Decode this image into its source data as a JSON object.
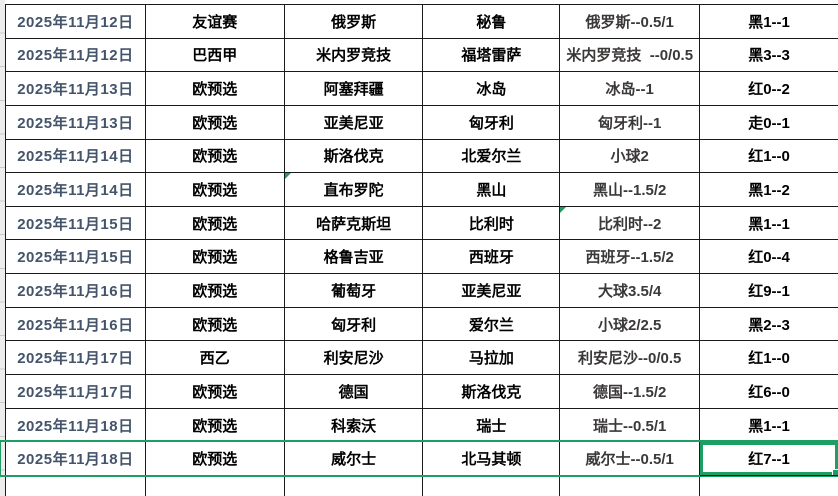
{
  "app": {
    "kind": "spreadsheet-grid",
    "description": "football match handicap record table"
  },
  "colors": {
    "grid_line": "#1a1a1a",
    "date_text": "#44546a",
    "handicap_text": "#3b3838",
    "default_text": "#000000",
    "selection_green": "#1f9e64",
    "left_strip_bg": "#ededed"
  },
  "table": {
    "column_order": [
      "date",
      "league",
      "home",
      "away",
      "handicap",
      "result"
    ],
    "rows": [
      {
        "date": "2025年11月12日",
        "league": "友谊赛",
        "home": "俄罗斯",
        "away": "秘鲁",
        "handicap": "俄罗斯--0.5/1",
        "result": "黑1--1"
      },
      {
        "date": "2025年11月12日",
        "league": "巴西甲",
        "home": "米内罗竞技",
        "away": "福塔雷萨",
        "handicap": "米内罗竞技  --0/0.5",
        "result": "黑3--3"
      },
      {
        "date": "2025年11月13日",
        "league": "欧预选",
        "home": "阿塞拜疆",
        "away": "冰岛",
        "handicap": "冰岛--1",
        "result": "红0--2"
      },
      {
        "date": "2025年11月13日",
        "league": "欧预选",
        "home": "亚美尼亚",
        "away": "匈牙利",
        "handicap": "匈牙利--1",
        "result": "走0--1"
      },
      {
        "date": "2025年11月14日",
        "league": "欧预选",
        "home": "斯洛伐克",
        "away": "北爱尔兰",
        "handicap": "小球2",
        "result": "红1--0"
      },
      {
        "date": "2025年11月14日",
        "league": "欧预选",
        "home": "直布罗陀",
        "away": "黑山",
        "handicap": "黑山--1.5/2",
        "result": "黑1--2",
        "home_marker": true
      },
      {
        "date": "2025年11月15日",
        "league": "欧预选",
        "home": "哈萨克斯坦",
        "away": "比利时",
        "handicap": "比利时--2",
        "result": "黑1--1",
        "handicap_marker": true
      },
      {
        "date": "2025年11月15日",
        "league": "欧预选",
        "home": "格鲁吉亚",
        "away": "西班牙",
        "handicap": "西班牙--1.5/2",
        "result": "红0--4"
      },
      {
        "date": "2025年11月16日",
        "league": "欧预选",
        "home": "葡萄牙",
        "away": "亚美尼亚",
        "handicap": "大球3.5/4",
        "result": "红9--1"
      },
      {
        "date": "2025年11月16日",
        "league": "欧预选",
        "home": "匈牙利",
        "away": "爱尔兰",
        "handicap": "小球2/2.5",
        "result": "黑2--3"
      },
      {
        "date": "2025年11月17日",
        "league": "西乙",
        "home": "利安尼沙",
        "away": "马拉加",
        "handicap": "利安尼沙--0/0.5",
        "result": "红1--0"
      },
      {
        "date": "2025年11月17日",
        "league": "欧预选",
        "home": "德国",
        "away": "斯洛伐克",
        "handicap": "德国--1.5/2",
        "result": "红6--0"
      },
      {
        "date": "2025年11月18日",
        "league": "欧预选",
        "home": "科索沃",
        "away": "瑞士",
        "handicap": "瑞士--0.5/1",
        "result": "黑1--1"
      },
      {
        "date": "2025年11月18日",
        "league": "欧预选",
        "home": "威尔士",
        "away": "北马其顿",
        "handicap": "威尔士--0.5/1",
        "result": "红7--1",
        "selected": true
      }
    ]
  },
  "selection": {
    "selected_row_index": 13,
    "active_cell_column": "result",
    "active_cell_value": "红7--1"
  },
  "annotations": {
    "error_markers": [
      {
        "row_index": 5,
        "column": "home"
      },
      {
        "row_index": 6,
        "column": "handicap"
      }
    ]
  }
}
